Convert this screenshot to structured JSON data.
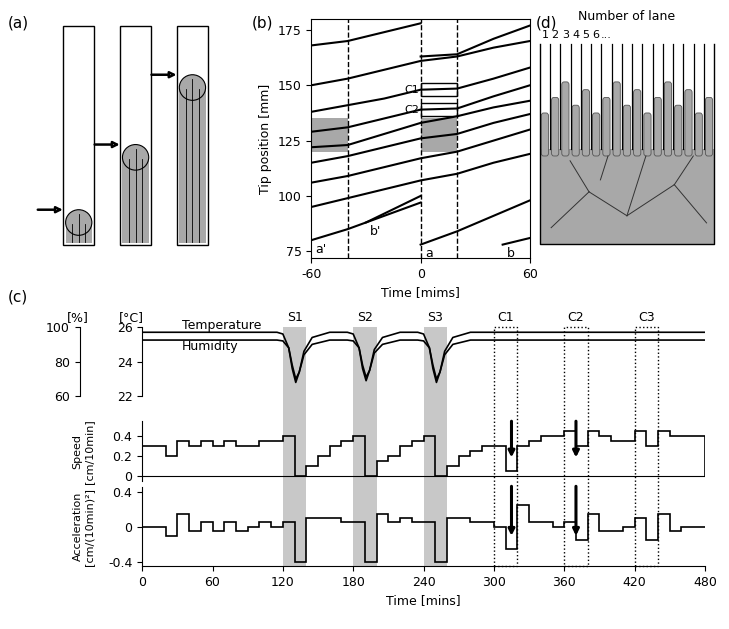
{
  "chart_data": [
    {
      "type": "line",
      "label": "(b)",
      "xlabel": "Time [mims]",
      "ylabel": "Tip position [mm]",
      "xlim": [
        -60,
        60
      ],
      "xticks": [
        -60,
        0,
        60
      ],
      "ylim": [
        72,
        180
      ],
      "yticks": [
        75,
        100,
        125,
        150,
        175
      ],
      "color": "#000000",
      "vlines": [
        -40,
        0,
        20
      ],
      "regions": [
        {
          "x": [
            -60,
            -40
          ],
          "y": [
            120,
            135
          ]
        },
        {
          "x": [
            0,
            20
          ],
          "y": [
            120,
            135
          ]
        }
      ],
      "boxes": [
        {
          "label": "C1",
          "x": [
            0,
            20
          ],
          "y": [
            145,
            151
          ]
        },
        {
          "label": "C2",
          "x": [
            0,
            20
          ],
          "y": [
            136,
            142
          ]
        }
      ],
      "series": [
        {
          "x": [
            -60,
            -40,
            -20,
            0
          ],
          "values": [
            168,
            170,
            174,
            178
          ]
        },
        {
          "x": [
            0,
            20,
            40,
            60
          ],
          "values": [
            163,
            164,
            171,
            177
          ]
        },
        {
          "x": [
            -60,
            -40,
            -20,
            0,
            20,
            40,
            60
          ],
          "values": [
            150,
            153,
            157,
            161,
            163,
            167,
            170
          ]
        },
        {
          "x": [
            -60,
            -40,
            -20,
            0,
            20,
            40,
            60
          ],
          "values": [
            138,
            141,
            144,
            148,
            148.5,
            153,
            158
          ]
        },
        {
          "x": [
            -60,
            -40,
            -20,
            0,
            20,
            40,
            60
          ],
          "values": [
            129,
            131,
            135,
            139,
            139.5,
            145,
            150
          ]
        },
        {
          "x": [
            -60,
            -40,
            -20,
            0,
            20,
            40,
            60
          ],
          "values": [
            122,
            123,
            128,
            133,
            136,
            140,
            143
          ]
        },
        {
          "x": [
            -60,
            -40,
            -20,
            0,
            20,
            40,
            60
          ],
          "values": [
            115,
            118,
            122,
            126,
            128,
            133,
            137
          ]
        },
        {
          "x": [
            -60,
            -40,
            -20,
            0,
            20,
            40,
            60
          ],
          "values": [
            106,
            109,
            113,
            117,
            120,
            125,
            130
          ]
        },
        {
          "x": [
            -60,
            -40,
            -20,
            0,
            20,
            40,
            60
          ],
          "values": [
            95,
            99,
            103,
            107,
            110,
            115,
            119
          ]
        },
        {
          "name": "a'",
          "x": [
            -60,
            -40,
            -20,
            0
          ],
          "values": [
            80,
            85,
            91,
            97
          ]
        },
        {
          "name": "b'",
          "x": [
            -30,
            -20,
            0
          ],
          "values": [
            88,
            92,
            100
          ]
        },
        {
          "name": "a",
          "x": [
            0,
            20,
            40,
            60
          ],
          "values": [
            78,
            84,
            91,
            98
          ]
        },
        {
          "name": "b",
          "x": [
            45,
            60
          ],
          "values": [
            78,
            81
          ]
        }
      ]
    },
    {
      "type": "line",
      "label": "(c)",
      "xlim": [
        0,
        480
      ],
      "tick_labels": "y",
      "ylabel": "[%]",
      "ylim": [
        60,
        100
      ],
      "yticks": [
        60,
        80,
        100
      ],
      "y2label": "[°C]",
      "y2lim": [
        22,
        26
      ],
      "y2ticks": [
        22,
        24,
        26
      ],
      "regions": [
        {
          "label": "S1",
          "x": [
            120,
            140
          ]
        },
        {
          "label": "S2",
          "x": [
            180,
            200
          ]
        },
        {
          "label": "S3",
          "x": [
            240,
            260
          ]
        }
      ],
      "boxes": [
        {
          "label": "C1",
          "x": [
            300,
            320
          ]
        },
        {
          "label": "C2",
          "x": [
            360,
            380
          ]
        },
        {
          "label": "C3",
          "x": [
            420,
            440
          ]
        }
      ],
      "x": [
        0,
        115,
        120,
        125,
        128,
        131,
        134,
        138,
        145,
        160,
        175,
        180,
        185,
        188,
        191,
        194,
        198,
        205,
        220,
        235,
        240,
        245,
        248,
        251,
        254,
        258,
        265,
        280,
        480
      ],
      "series": [
        {
          "name": "Temperature",
          "axis": "y2",
          "values": [
            25.7,
            25.7,
            25.6,
            24.8,
            23.6,
            22.8,
            23.4,
            24.6,
            25.4,
            25.7,
            25.7,
            25.6,
            24.8,
            23.6,
            22.9,
            23.5,
            24.7,
            25.4,
            25.7,
            25.7,
            25.6,
            24.8,
            23.6,
            22.8,
            23.4,
            24.6,
            25.4,
            25.7,
            25.7
          ]
        },
        {
          "name": "Humidity",
          "values": [
            92.5,
            92.5,
            92,
            88,
            78,
            70,
            74,
            84,
            90,
            92.5,
            92.5,
            92,
            88,
            78,
            71,
            75,
            85,
            90,
            92.5,
            92.5,
            92,
            88,
            78,
            70,
            74,
            84,
            90,
            92.5,
            92.5
          ]
        }
      ]
    },
    {
      "type": "step",
      "ylabel": "Speed\n[cm/10min]",
      "xlim": [
        0,
        480
      ],
      "tick_labels": "y",
      "ylim": [
        -0.05,
        0.55
      ],
      "yticks": [
        0,
        0.2,
        0.4
      ],
      "arrows": [
        315,
        370
      ],
      "bins": [
        0,
        10,
        20,
        30,
        40,
        50,
        60,
        70,
        80,
        90,
        100,
        110,
        120,
        130,
        140,
        150,
        160,
        170,
        180,
        190,
        200,
        210,
        220,
        230,
        240,
        250,
        260,
        270,
        280,
        290,
        300,
        310,
        320,
        330,
        340,
        350,
        360,
        370,
        380,
        390,
        400,
        410,
        420,
        430,
        440,
        450,
        460,
        470,
        480
      ],
      "values": [
        0.3,
        0.3,
        0.2,
        0.35,
        0.3,
        0.35,
        0.3,
        0.35,
        0.3,
        0.3,
        0.35,
        0.35,
        0.4,
        0,
        0.1,
        0.2,
        0.3,
        0.35,
        0.4,
        0,
        0.15,
        0.2,
        0.3,
        0.35,
        0.4,
        0,
        0.1,
        0.2,
        0.25,
        0.3,
        0.3,
        0.05,
        0.3,
        0.35,
        0.4,
        0.4,
        0.45,
        0.3,
        0.45,
        0.4,
        0.35,
        0.35,
        0.45,
        0.3,
        0.45,
        0.4,
        0.4,
        0.4
      ]
    },
    {
      "type": "step",
      "xlabel": "Time [mins]",
      "ylabel": "Acceleration\n[cm/(10min)²]",
      "xlim": [
        0,
        480
      ],
      "xticks": [
        0,
        60,
        120,
        180,
        240,
        300,
        360,
        420,
        480
      ],
      "ylim": [
        -0.45,
        0.45
      ],
      "yticks": [
        -0.4,
        0,
        0.4
      ],
      "arrows": [
        315,
        370
      ],
      "bins": [
        0,
        10,
        20,
        30,
        40,
        50,
        60,
        70,
        80,
        90,
        100,
        110,
        120,
        130,
        140,
        150,
        160,
        170,
        180,
        190,
        200,
        210,
        220,
        230,
        240,
        250,
        260,
        270,
        280,
        290,
        300,
        310,
        320,
        330,
        340,
        350,
        360,
        370,
        380,
        390,
        400,
        410,
        420,
        430,
        440,
        450,
        460,
        470,
        480
      ],
      "values": [
        0,
        0,
        -0.1,
        0.15,
        -0.05,
        0.05,
        -0.05,
        0.05,
        -0.05,
        0,
        0.05,
        0,
        0.05,
        -0.4,
        0.1,
        0.1,
        0.1,
        0.05,
        0.05,
        -0.4,
        0.15,
        0.05,
        0.1,
        0.05,
        0.05,
        -0.4,
        0.1,
        0.1,
        0.05,
        0.05,
        0,
        -0.25,
        0.25,
        0.05,
        0.05,
        0,
        0.05,
        -0.15,
        0.15,
        -0.05,
        -0.05,
        0,
        0.1,
        -0.15,
        0.15,
        -0.05,
        0,
        0
      ]
    }
  ],
  "diagrams": {
    "a": {
      "label": "(a)"
    },
    "d": {
      "label": "(d)",
      "title": "Number of lane",
      "lane_numbers": [
        "1",
        "2",
        "3",
        "4",
        "5",
        "6",
        "..."
      ]
    }
  }
}
